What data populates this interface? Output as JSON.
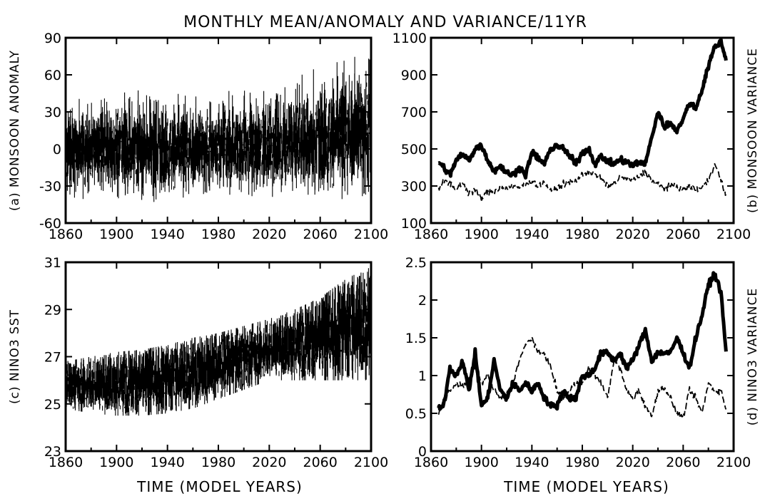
{
  "figure": {
    "title": "MONTHLY MEAN/ANOMALY AND VARIANCE/11YR",
    "xtitle": "TIME (MODEL YEARS)"
  },
  "chart_data": [
    {
      "panel": "a",
      "type": "line",
      "title": "",
      "xlabel": "",
      "ylabel": "(a) MONSOON ANOMALY",
      "xlim": [
        1860,
        2100
      ],
      "ylim": [
        -60,
        90
      ],
      "xticks": [
        1860,
        1900,
        1940,
        1980,
        2020,
        2060,
        2100
      ],
      "yticks": [
        -60,
        -30,
        0,
        30,
        60,
        90
      ],
      "series": [
        {
          "style": "dense-monthly",
          "x": [
            1860,
            1880,
            1900,
            1920,
            1940,
            1960,
            1980,
            2000,
            2020,
            2040,
            2060,
            2080,
            2100
          ],
          "mean": [
            0,
            0,
            0,
            0,
            0,
            0,
            1,
            2,
            3,
            6,
            9,
            13,
            17
          ],
          "amplitude": [
            25,
            25,
            26,
            27,
            27,
            26,
            25,
            26,
            27,
            30,
            33,
            36,
            38
          ]
        }
      ]
    },
    {
      "panel": "b",
      "type": "line",
      "title": "",
      "xlabel": "",
      "ylabel": "(b) MONSOON VARIANCE",
      "xlim": [
        1860,
        2100
      ],
      "ylim": [
        100,
        1100
      ],
      "xticks": [
        1860,
        1900,
        1940,
        1980,
        2020,
        2060,
        2100
      ],
      "yticks": [
        100,
        300,
        500,
        700,
        900,
        1100
      ],
      "series": [
        {
          "style": "thick",
          "x": [
            1866,
            1870,
            1875,
            1880,
            1885,
            1890,
            1895,
            1900,
            1905,
            1910,
            1915,
            1920,
            1925,
            1930,
            1935,
            1940,
            1945,
            1950,
            1955,
            1960,
            1965,
            1970,
            1975,
            1980,
            1985,
            1990,
            1995,
            2000,
            2005,
            2010,
            2015,
            2020,
            2025,
            2030,
            2035,
            2040,
            2045,
            2050,
            2055,
            2060,
            2065,
            2070,
            2075,
            2080,
            2085,
            2090,
            2094
          ],
          "y": [
            430,
            400,
            360,
            440,
            470,
            440,
            500,
            520,
            440,
            380,
            410,
            370,
            360,
            400,
            360,
            480,
            450,
            420,
            500,
            520,
            500,
            460,
            420,
            480,
            500,
            420,
            460,
            430,
            420,
            440,
            430,
            410,
            430,
            420,
            560,
            700,
            620,
            640,
            600,
            660,
            750,
            720,
            820,
            950,
            1050,
            1080,
            980
          ]
        },
        {
          "style": "dashed",
          "x": [
            1866,
            1870,
            1875,
            1880,
            1885,
            1890,
            1895,
            1900,
            1905,
            1910,
            1915,
            1920,
            1925,
            1930,
            1935,
            1940,
            1945,
            1950,
            1955,
            1960,
            1965,
            1970,
            1975,
            1980,
            1985,
            1990,
            1995,
            2000,
            2005,
            2010,
            2015,
            2020,
            2025,
            2030,
            2035,
            2040,
            2045,
            2050,
            2055,
            2060,
            2065,
            2070,
            2075,
            2080,
            2085,
            2090,
            2094
          ],
          "y": [
            290,
            330,
            310,
            280,
            320,
            260,
            280,
            230,
            270,
            270,
            290,
            290,
            300,
            290,
            310,
            330,
            300,
            320,
            270,
            290,
            310,
            320,
            330,
            360,
            380,
            360,
            340,
            300,
            310,
            350,
            340,
            330,
            350,
            380,
            330,
            310,
            290,
            300,
            300,
            280,
            300,
            280,
            290,
            330,
            420,
            330,
            250
          ]
        }
      ]
    },
    {
      "panel": "c",
      "type": "line",
      "title": "",
      "xlabel": "",
      "ylabel": "(c) NINO3 SST",
      "xlim": [
        1860,
        2100
      ],
      "ylim": [
        23,
        31
      ],
      "xticks": [
        1860,
        1900,
        1940,
        1980,
        2020,
        2060,
        2100
      ],
      "yticks": [
        23,
        25,
        27,
        29,
        31
      ],
      "series": [
        {
          "style": "dense-monthly",
          "x": [
            1860,
            1880,
            1900,
            1920,
            1940,
            1960,
            1980,
            2000,
            2020,
            2040,
            2060,
            2080,
            2100
          ],
          "upper": [
            26.8,
            27.0,
            27.2,
            27.3,
            27.5,
            27.8,
            28.0,
            28.3,
            28.6,
            29.0,
            29.5,
            30.3,
            30.8
          ],
          "lower": [
            24.8,
            24.6,
            24.5,
            24.5,
            24.6,
            24.8,
            25.2,
            25.6,
            26.0,
            26.0,
            26.0,
            26.0,
            26.0
          ]
        }
      ]
    },
    {
      "panel": "d",
      "type": "line",
      "title": "",
      "xlabel": "",
      "ylabel": "(d) NINO3 VARIANCE",
      "xlim": [
        1860,
        2100
      ],
      "ylim": [
        0,
        2.5
      ],
      "xticks": [
        1860,
        1900,
        1940,
        1980,
        2020,
        2060,
        2100
      ],
      "yticks": [
        0,
        0.5,
        1,
        1.5,
        2,
        2.5
      ],
      "series": [
        {
          "style": "thick",
          "x": [
            1866,
            1870,
            1875,
            1880,
            1885,
            1890,
            1895,
            1900,
            1905,
            1910,
            1915,
            1920,
            1925,
            1930,
            1935,
            1940,
            1945,
            1950,
            1955,
            1960,
            1965,
            1970,
            1975,
            1980,
            1985,
            1990,
            1995,
            2000,
            2005,
            2010,
            2015,
            2020,
            2025,
            2030,
            2035,
            2040,
            2045,
            2050,
            2055,
            2060,
            2065,
            2070,
            2075,
            2080,
            2085,
            2090,
            2094
          ],
          "y": [
            0.55,
            0.6,
            1.1,
            1.0,
            1.2,
            0.8,
            1.3,
            0.6,
            0.7,
            1.2,
            0.8,
            0.7,
            0.9,
            0.8,
            0.9,
            0.8,
            0.9,
            0.7,
            0.6,
            0.6,
            0.8,
            0.7,
            0.7,
            1.0,
            1.0,
            1.1,
            1.3,
            1.3,
            1.2,
            1.3,
            1.1,
            1.2,
            1.4,
            1.6,
            1.2,
            1.3,
            1.3,
            1.3,
            1.5,
            1.3,
            1.1,
            1.5,
            1.8,
            2.2,
            2.35,
            2.1,
            1.3
          ]
        },
        {
          "style": "dashed",
          "x": [
            1866,
            1870,
            1875,
            1880,
            1885,
            1890,
            1895,
            1900,
            1905,
            1910,
            1915,
            1920,
            1925,
            1930,
            1935,
            1940,
            1945,
            1950,
            1955,
            1960,
            1965,
            1970,
            1975,
            1980,
            1985,
            1990,
            1995,
            2000,
            2005,
            2010,
            2015,
            2020,
            2025,
            2030,
            2035,
            2040,
            2045,
            2050,
            2055,
            2060,
            2065,
            2070,
            2075,
            2080,
            2085,
            2090,
            2094
          ],
          "y": [
            0.5,
            0.65,
            0.8,
            0.9,
            0.85,
            0.95,
            1.1,
            0.9,
            1.0,
            0.8,
            0.7,
            0.75,
            0.9,
            1.2,
            1.4,
            1.5,
            1.3,
            1.3,
            1.1,
            0.8,
            0.7,
            0.8,
            0.9,
            0.9,
            1.1,
            1.0,
            0.9,
            0.7,
            1.2,
            1.1,
            0.8,
            0.7,
            0.8,
            0.6,
            0.45,
            0.8,
            0.85,
            0.7,
            0.5,
            0.45,
            0.8,
            0.7,
            0.5,
            0.9,
            0.8,
            0.8,
            0.55
          ]
        }
      ]
    }
  ]
}
